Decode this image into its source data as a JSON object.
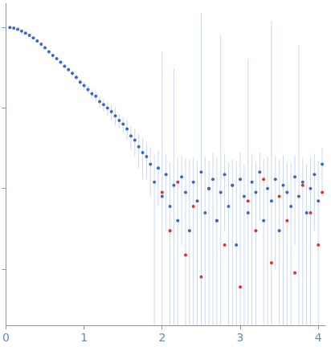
{
  "chart_data": {
    "type": "scatter",
    "log": "y",
    "grid": false,
    "tick_labels": "x",
    "xlim": [
      0,
      4.08
    ],
    "xticks": [
      0,
      1,
      2,
      3,
      4
    ],
    "ylim": [
      0.0002,
      2
    ],
    "yticks": [
      0.001,
      0.01,
      0.1,
      1
    ],
    "series": [
      {
        "color": "#3a66c4",
        "marker": "circle",
        "x": [
          0.05,
          0.1,
          0.15,
          0.2,
          0.25,
          0.3,
          0.35,
          0.4,
          0.45,
          0.5,
          0.55,
          0.6,
          0.65,
          0.7,
          0.75,
          0.8,
          0.85,
          0.9,
          0.95,
          1.0,
          1.05,
          1.1,
          1.15,
          1.2,
          1.25,
          1.3,
          1.35,
          1.4,
          1.45,
          1.5,
          1.55,
          1.6,
          1.65,
          1.7,
          1.75,
          1.8,
          1.85,
          1.9,
          1.95,
          2.0,
          2.05,
          2.1,
          2.15,
          2.2,
          2.25,
          2.3,
          2.35,
          2.4,
          2.45,
          2.5,
          2.55,
          2.6,
          2.65,
          2.7,
          2.75,
          2.8,
          2.85,
          2.9,
          2.95,
          3.0,
          3.05,
          3.1,
          3.15,
          3.2,
          3.25,
          3.3,
          3.35,
          3.4,
          3.45,
          3.5,
          3.55,
          3.6,
          3.65,
          3.7,
          3.75,
          3.8,
          3.85,
          3.9,
          3.95,
          4.0,
          4.05
        ],
        "values": [
          1.0,
          0.98,
          0.95,
          0.9,
          0.85,
          0.8,
          0.74,
          0.68,
          0.62,
          0.56,
          0.5,
          0.45,
          0.41,
          0.37,
          0.33,
          0.3,
          0.27,
          0.24,
          0.21,
          0.19,
          0.17,
          0.15,
          0.14,
          0.12,
          0.11,
          0.1,
          0.09,
          0.08,
          0.07,
          0.063,
          0.055,
          0.045,
          0.04,
          0.033,
          0.028,
          0.025,
          0.02,
          0.012,
          0.018,
          0.008,
          0.015,
          0.006,
          0.011,
          0.004,
          0.014,
          0.009,
          0.003,
          0.012,
          0.007,
          0.016,
          0.005,
          0.01,
          0.013,
          0.004,
          0.009,
          0.015,
          0.006,
          0.011,
          0.002,
          0.013,
          0.008,
          0.005,
          0.012,
          0.009,
          0.016,
          0.004,
          0.01,
          0.007,
          0.013,
          0.003,
          0.011,
          0.009,
          0.006,
          0.014,
          0.008,
          0.012,
          0.005,
          0.01,
          0.015,
          0.007,
          0.02
        ],
        "errors": [
          0.04,
          0.02,
          0.02,
          0.02,
          0.02,
          0.02,
          0.02,
          0.02,
          0.02,
          0.02,
          0.02,
          0.02,
          0.02,
          0.02,
          0.02,
          0.02,
          0.02,
          0.02,
          0.02,
          0.02,
          0.02,
          0.02,
          0.02,
          0.02,
          0.02,
          0.02,
          0.02,
          0.02,
          0.015,
          0.015,
          0.015,
          0.015,
          0.015,
          0.015,
          0.015,
          0.012,
          0.012,
          0.015,
          0.012,
          0.5,
          0.012,
          0.015,
          0.3,
          0.02,
          0.012,
          0.015,
          0.02,
          0.012,
          0.015,
          1.5,
          0.02,
          0.012,
          0.015,
          0.02,
          0.8,
          0.012,
          0.015,
          0.012,
          0.02,
          0.015,
          0.012,
          0.4,
          0.015,
          0.012,
          0.012,
          0.02,
          0.015,
          1.2,
          0.012,
          0.02,
          0.015,
          0.012,
          0.015,
          0.012,
          0.6,
          0.012,
          0.015,
          0.015,
          0.012,
          0.015,
          0.012
        ]
      },
      {
        "color": "#e0312f",
        "marker": "circle",
        "x": [
          2.0,
          2.1,
          2.2,
          2.3,
          2.4,
          2.5,
          2.6,
          2.7,
          2.8,
          2.9,
          3.0,
          3.1,
          3.2,
          3.3,
          3.4,
          3.5,
          3.6,
          3.7,
          3.8,
          3.9,
          4.0,
          4.05
        ],
        "values": [
          0.009,
          0.003,
          0.012,
          0.0015,
          0.006,
          0.0008,
          0.01,
          0.004,
          0.002,
          0.011,
          0.0006,
          0.007,
          0.003,
          0.013,
          0.0012,
          0.008,
          0.004,
          0.0009,
          0.011,
          0.005,
          0.002,
          0.009
        ]
      }
    ]
  }
}
